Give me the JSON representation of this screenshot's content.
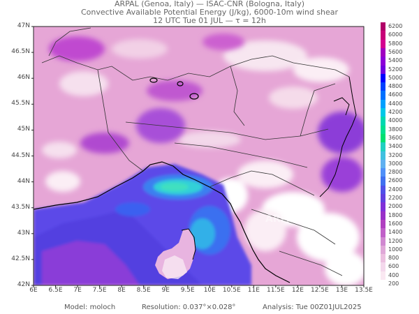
{
  "header": {
    "line1": "ARPAL (Genoa, Italy)  —  ISAC-CNR (Bologna, Italy)",
    "line2": "Convective Available Potential Energy (J/kg), 6000-10m wind shear",
    "line3": "12 UTC Tue 01 JUL  —  τ = 12h"
  },
  "axes": {
    "lat_labels": [
      "47N",
      "46.5N",
      "46N",
      "45.5N",
      "45N",
      "44.5N",
      "44N",
      "43.5N",
      "43N",
      "42.5N",
      "42N"
    ],
    "lon_labels": [
      "6E",
      "6.5E",
      "7E",
      "7.5E",
      "8E",
      "8.5E",
      "9E",
      "9.5E",
      "10E",
      "10.5E",
      "11E",
      "11.5E",
      "12E",
      "12.5E",
      "13E",
      "13.5E"
    ]
  },
  "colorbar": {
    "labels": [
      "6200",
      "6000",
      "5800",
      "5600",
      "5400",
      "5200",
      "5000",
      "4800",
      "4600",
      "4400",
      "4200",
      "4000",
      "3800",
      "3600",
      "3400",
      "3200",
      "3000",
      "2800",
      "2600",
      "2400",
      "2200",
      "2000",
      "1800",
      "1600",
      "1400",
      "1200",
      "1000",
      "800",
      "600",
      "400",
      "200"
    ],
    "colors": [
      "#b00068",
      "#c80078",
      "#d40090",
      "#a000c0",
      "#8c00d8",
      "#7000e0",
      "#0000ff",
      "#0040ff",
      "#0070ff",
      "#00a0ff",
      "#00c8e8",
      "#00d8b0",
      "#00e090",
      "#00e070",
      "#20d0c0",
      "#40c0e0",
      "#60b0f0",
      "#5090f8",
      "#4070f0",
      "#5050e8",
      "#6040e0",
      "#8030d8",
      "#9830c8",
      "#b040c0",
      "#c060c8",
      "#d088d0",
      "#e0a8d8",
      "#ecc0e0",
      "#f4d8ec",
      "#fae8f2",
      "#ffffff"
    ]
  },
  "footer": {
    "model": "Model: moloch",
    "resolution": "Resolution: 0.037°×0.028°",
    "analysis": "Analysis: Tue 00Z01JUL2025"
  },
  "watermark": "ARPAL"
}
